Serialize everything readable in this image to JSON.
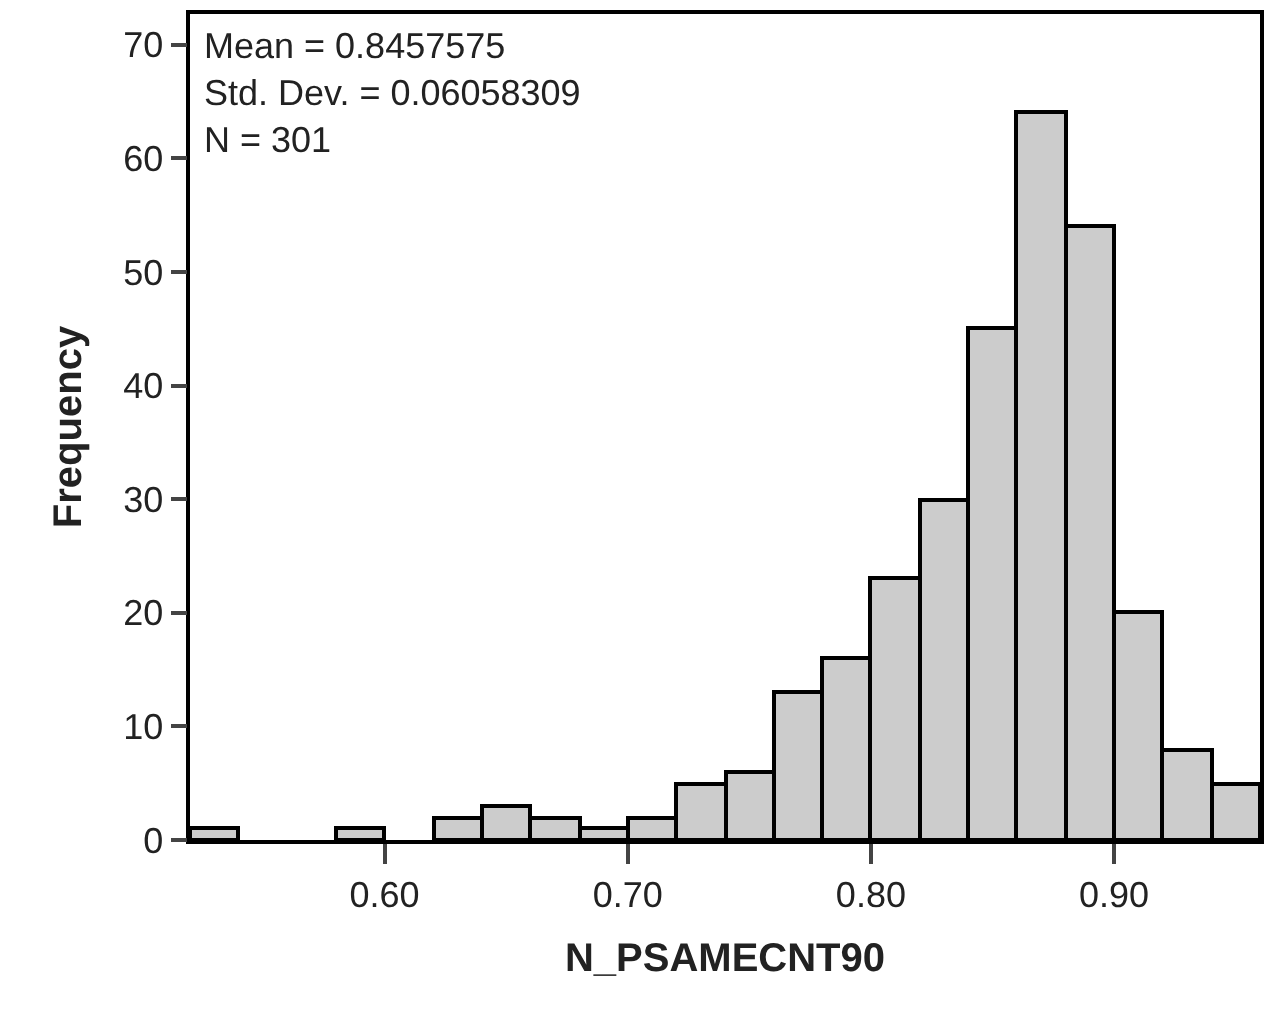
{
  "chart_data": {
    "type": "histogram",
    "xlabel": "N_PSAMECNT90",
    "ylabel": "Frequency",
    "bins": [
      0.52,
      0.54,
      0.56,
      0.58,
      0.6,
      0.62,
      0.64,
      0.66,
      0.68,
      0.7,
      0.72,
      0.74,
      0.76,
      0.78,
      0.8,
      0.82,
      0.84,
      0.86,
      0.88,
      0.9,
      0.92,
      0.94,
      0.96
    ],
    "values": [
      1,
      0,
      0,
      1,
      0,
      2,
      3,
      2,
      1,
      2,
      5,
      6,
      13,
      16,
      23,
      30,
      45,
      64,
      54,
      20,
      8,
      5
    ],
    "color": "#cccccc",
    "xlim": [
      0.52,
      0.96
    ],
    "xticks": [
      {
        "value": 0.6,
        "label": "0.60"
      },
      {
        "value": 0.7,
        "label": "0.70"
      },
      {
        "value": 0.8,
        "label": "0.80"
      },
      {
        "value": 0.9,
        "label": "0.90"
      }
    ],
    "ylim": [
      0,
      72.7
    ],
    "yticks": [
      0,
      10,
      20,
      30,
      40,
      50,
      60,
      70
    ],
    "annotations": [
      "Mean = 0.8457575",
      "Std. Dev. = 0.06058309",
      "N = 301"
    ]
  }
}
